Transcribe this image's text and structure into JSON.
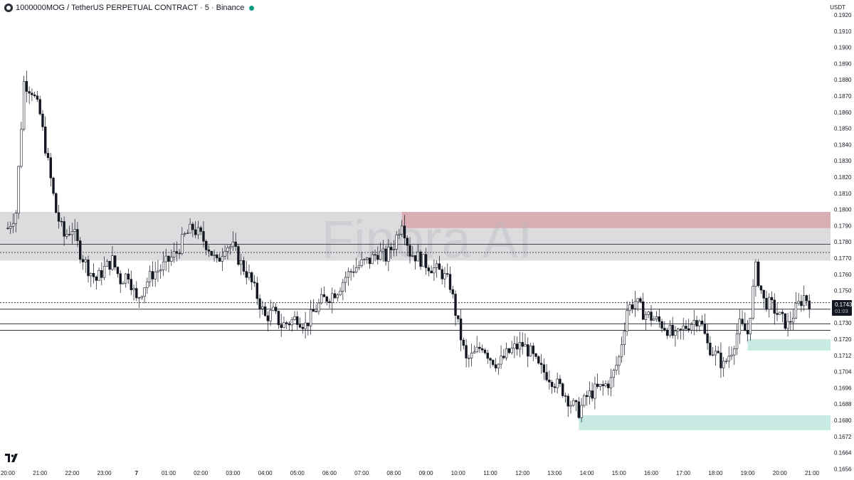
{
  "header": {
    "symbol_icon": "mog-coin-icon",
    "title": "1000000MOG / TetherUS PERPETUAL CONTRACT · 5 · Binance",
    "status_color": "#089981"
  },
  "currency_label": "USDT",
  "watermark": "Finora AI",
  "logo_icon": "tradingview-logo-icon",
  "colors": {
    "background": "#ffffff",
    "candle": "#131722",
    "supply_zone": "#d9a7ad",
    "gray_zone": "#dcdcde",
    "demand_zone": "#bde8de",
    "price_label_bg": "#131722"
  },
  "price_label": {
    "price": "0.1743",
    "countdown": "01:03"
  },
  "chart_data": {
    "type": "candlestick",
    "x_ticks": [
      "20:00",
      "21:00",
      "22:00",
      "23:00",
      "7",
      "01:00",
      "02:00",
      "03:00",
      "04:00",
      "05:00",
      "06:00",
      "07:00",
      "08:00",
      "09:00",
      "10:00",
      "11:00",
      "12:00",
      "13:00",
      "14:00",
      "15:00",
      "16:00",
      "17:00",
      "18:00",
      "19:00",
      "20:00",
      "21:00"
    ],
    "y_ticks": [
      "0.1920",
      "0.1910",
      "0.1900",
      "0.1890",
      "0.1880",
      "0.1870",
      "0.1860",
      "0.1850",
      "0.1840",
      "0.1830",
      "0.1820",
      "0.1810",
      "0.1800",
      "0.1790",
      "0.1780",
      "0.1770",
      "0.1760",
      "0.1750",
      "0.1740",
      "0.1730",
      "0.1720",
      "0.1712",
      "0.1704",
      "0.1696",
      "0.1688",
      "0.1680",
      "0.1672",
      "0.1664",
      "0.1656"
    ],
    "current_price": 0.1743,
    "path": [
      [
        "20:00",
        0.179
      ],
      [
        "20:15",
        0.18
      ],
      [
        "20:30",
        0.188
      ],
      [
        "20:45",
        0.1875
      ],
      [
        "21:00",
        0.186
      ],
      [
        "21:15",
        0.183
      ],
      [
        "21:30",
        0.18
      ],
      [
        "21:45",
        0.1785
      ],
      [
        "22:00",
        0.179
      ],
      [
        "22:15",
        0.1775
      ],
      [
        "22:30",
        0.1765
      ],
      [
        "22:45",
        0.1758
      ],
      [
        "23:00",
        0.1765
      ],
      [
        "23:15",
        0.177
      ],
      [
        "23:30",
        0.1758
      ],
      [
        "23:45",
        0.1762
      ],
      [
        "00:00",
        0.1745
      ],
      [
        "00:15",
        0.1755
      ],
      [
        "00:30",
        0.1762
      ],
      [
        "00:45",
        0.1765
      ],
      [
        "01:00",
        0.177
      ],
      [
        "01:15",
        0.1775
      ],
      [
        "01:30",
        0.1785
      ],
      [
        "01:45",
        0.179
      ],
      [
        "02:00",
        0.1785
      ],
      [
        "02:15",
        0.1778
      ],
      [
        "02:30",
        0.1768
      ],
      [
        "02:45",
        0.178
      ],
      [
        "03:00",
        0.1778
      ],
      [
        "03:15",
        0.1768
      ],
      [
        "03:30",
        0.176
      ],
      [
        "03:45",
        0.1748
      ],
      [
        "04:00",
        0.1735
      ],
      [
        "04:15",
        0.1738
      ],
      [
        "04:30",
        0.173
      ],
      [
        "04:45",
        0.1732
      ],
      [
        "05:00",
        0.1735
      ],
      [
        "05:15",
        0.173
      ],
      [
        "05:30",
        0.1738
      ],
      [
        "05:45",
        0.1745
      ],
      [
        "06:00",
        0.1748
      ],
      [
        "06:15",
        0.1752
      ],
      [
        "06:30",
        0.176
      ],
      [
        "06:45",
        0.1765
      ],
      [
        "07:00",
        0.1768
      ],
      [
        "07:15",
        0.177
      ],
      [
        "07:30",
        0.1775
      ],
      [
        "07:45",
        0.1772
      ],
      [
        "08:00",
        0.178
      ],
      [
        "08:15",
        0.1795
      ],
      [
        "08:30",
        0.1775
      ],
      [
        "08:45",
        0.1772
      ],
      [
        "09:00",
        0.1768
      ],
      [
        "09:15",
        0.1765
      ],
      [
        "09:30",
        0.1762
      ],
      [
        "09:45",
        0.1755
      ],
      [
        "10:00",
        0.173
      ],
      [
        "10:15",
        0.1708
      ],
      [
        "10:30",
        0.1712
      ],
      [
        "10:45",
        0.1718
      ],
      [
        "11:00",
        0.171
      ],
      [
        "11:15",
        0.1706
      ],
      [
        "11:30",
        0.1712
      ],
      [
        "11:45",
        0.1716
      ],
      [
        "12:00",
        0.1718
      ],
      [
        "12:15",
        0.1713
      ],
      [
        "12:30",
        0.1704
      ],
      [
        "12:45",
        0.17
      ],
      [
        "13:00",
        0.1695
      ],
      [
        "13:15",
        0.169
      ],
      [
        "13:30",
        0.1682
      ],
      [
        "13:45",
        0.1677
      ],
      [
        "14:00",
        0.1686
      ],
      [
        "14:15",
        0.169
      ],
      [
        "14:30",
        0.1692
      ],
      [
        "14:45",
        0.1696
      ],
      [
        "15:00",
        0.171
      ],
      [
        "15:15",
        0.174
      ],
      [
        "15:30",
        0.1745
      ],
      [
        "15:45",
        0.1738
      ],
      [
        "16:00",
        0.1735
      ],
      [
        "16:15",
        0.1732
      ],
      [
        "16:30",
        0.1728
      ],
      [
        "16:45",
        0.1722
      ],
      [
        "17:00",
        0.1728
      ],
      [
        "17:15",
        0.1732
      ],
      [
        "17:30",
        0.1735
      ],
      [
        "17:45",
        0.1718
      ],
      [
        "18:00",
        0.1712
      ],
      [
        "18:15",
        0.1705
      ],
      [
        "18:30",
        0.1715
      ],
      [
        "18:45",
        0.173
      ],
      [
        "19:00",
        0.1725
      ],
      [
        "19:15",
        0.1765
      ],
      [
        "19:30",
        0.1745
      ],
      [
        "19:45",
        0.1742
      ],
      [
        "20:00",
        0.1735
      ],
      [
        "20:15",
        0.173
      ],
      [
        "20:30",
        0.174
      ],
      [
        "20:45",
        0.1748
      ],
      [
        "21:00",
        0.1743
      ]
    ],
    "zones": [
      {
        "name": "gray-zone",
        "from": "20:00",
        "y_top": 0.18,
        "y_bottom": 0.177
      },
      {
        "name": "supply-zone",
        "from": "08:15",
        "y_top": 0.18,
        "y_bottom": 0.179
      },
      {
        "name": "demand-zone-small",
        "from": "19:00",
        "y_top": 0.1727,
        "y_bottom": 0.1719
      },
      {
        "name": "demand-zone",
        "from": "13:45",
        "y_top": 0.1684,
        "y_bottom": 0.1676
      }
    ],
    "horizontal_lines": [
      0.178,
      0.1775,
      0.1744,
      0.174,
      0.1731,
      0.1727
    ]
  }
}
